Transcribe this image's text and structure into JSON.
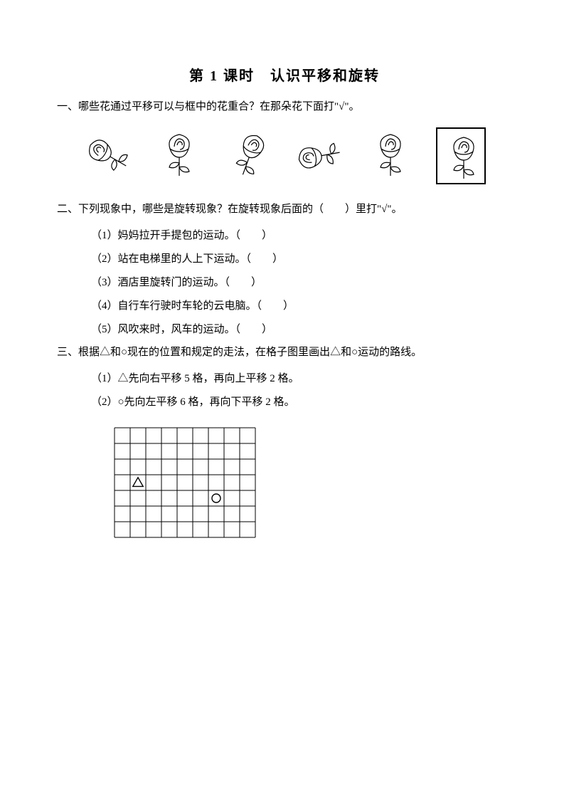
{
  "title": "第 1 课时　认识平移和旋转",
  "q1": {
    "prompt": "一、哪些花通过平移可以与框中的花重合？在那朵花下面打\"√\"。",
    "flowers": [
      {
        "rotation": -60,
        "boxed": false
      },
      {
        "rotation": 0,
        "boxed": false
      },
      {
        "rotation": 20,
        "boxed": false
      },
      {
        "rotation": -100,
        "boxed": false
      },
      {
        "rotation": 0,
        "boxed": false
      },
      {
        "rotation": 0,
        "boxed": true
      }
    ]
  },
  "q2": {
    "prompt": "二、下列现象中，哪些是旋转现象？在旋转现象后面的（　　）里打\"√\"。",
    "items": [
      "（1）妈妈拉开手提包的运动。（　　）",
      "（2）站在电梯里的人上下运动。（　　）",
      "（3）酒店里旋转门的运动。（　　）",
      "（4）自行车行驶时车轮的云电脑。（　　）",
      "（5）风吹来时，风车的运动。（　　）"
    ]
  },
  "q3": {
    "prompt": "三、根据△和○现在的位置和规定的走法，在格子图里画出△和○运动的路线。",
    "items": [
      "（1）△先向右平移 5 格，再向上平移 2 格。",
      "（2）○先向左平移 6 格，再向下平移 2 格。"
    ],
    "grid": {
      "cols": 9,
      "rows": 7,
      "cell": 22,
      "stroke": "#000000",
      "triangle": {
        "col": 1.5,
        "row": 3.5,
        "size": 9
      },
      "circle": {
        "col": 6.5,
        "row": 4.5,
        "r": 6
      }
    }
  },
  "colors": {
    "text": "#000000",
    "bg": "#ffffff"
  }
}
